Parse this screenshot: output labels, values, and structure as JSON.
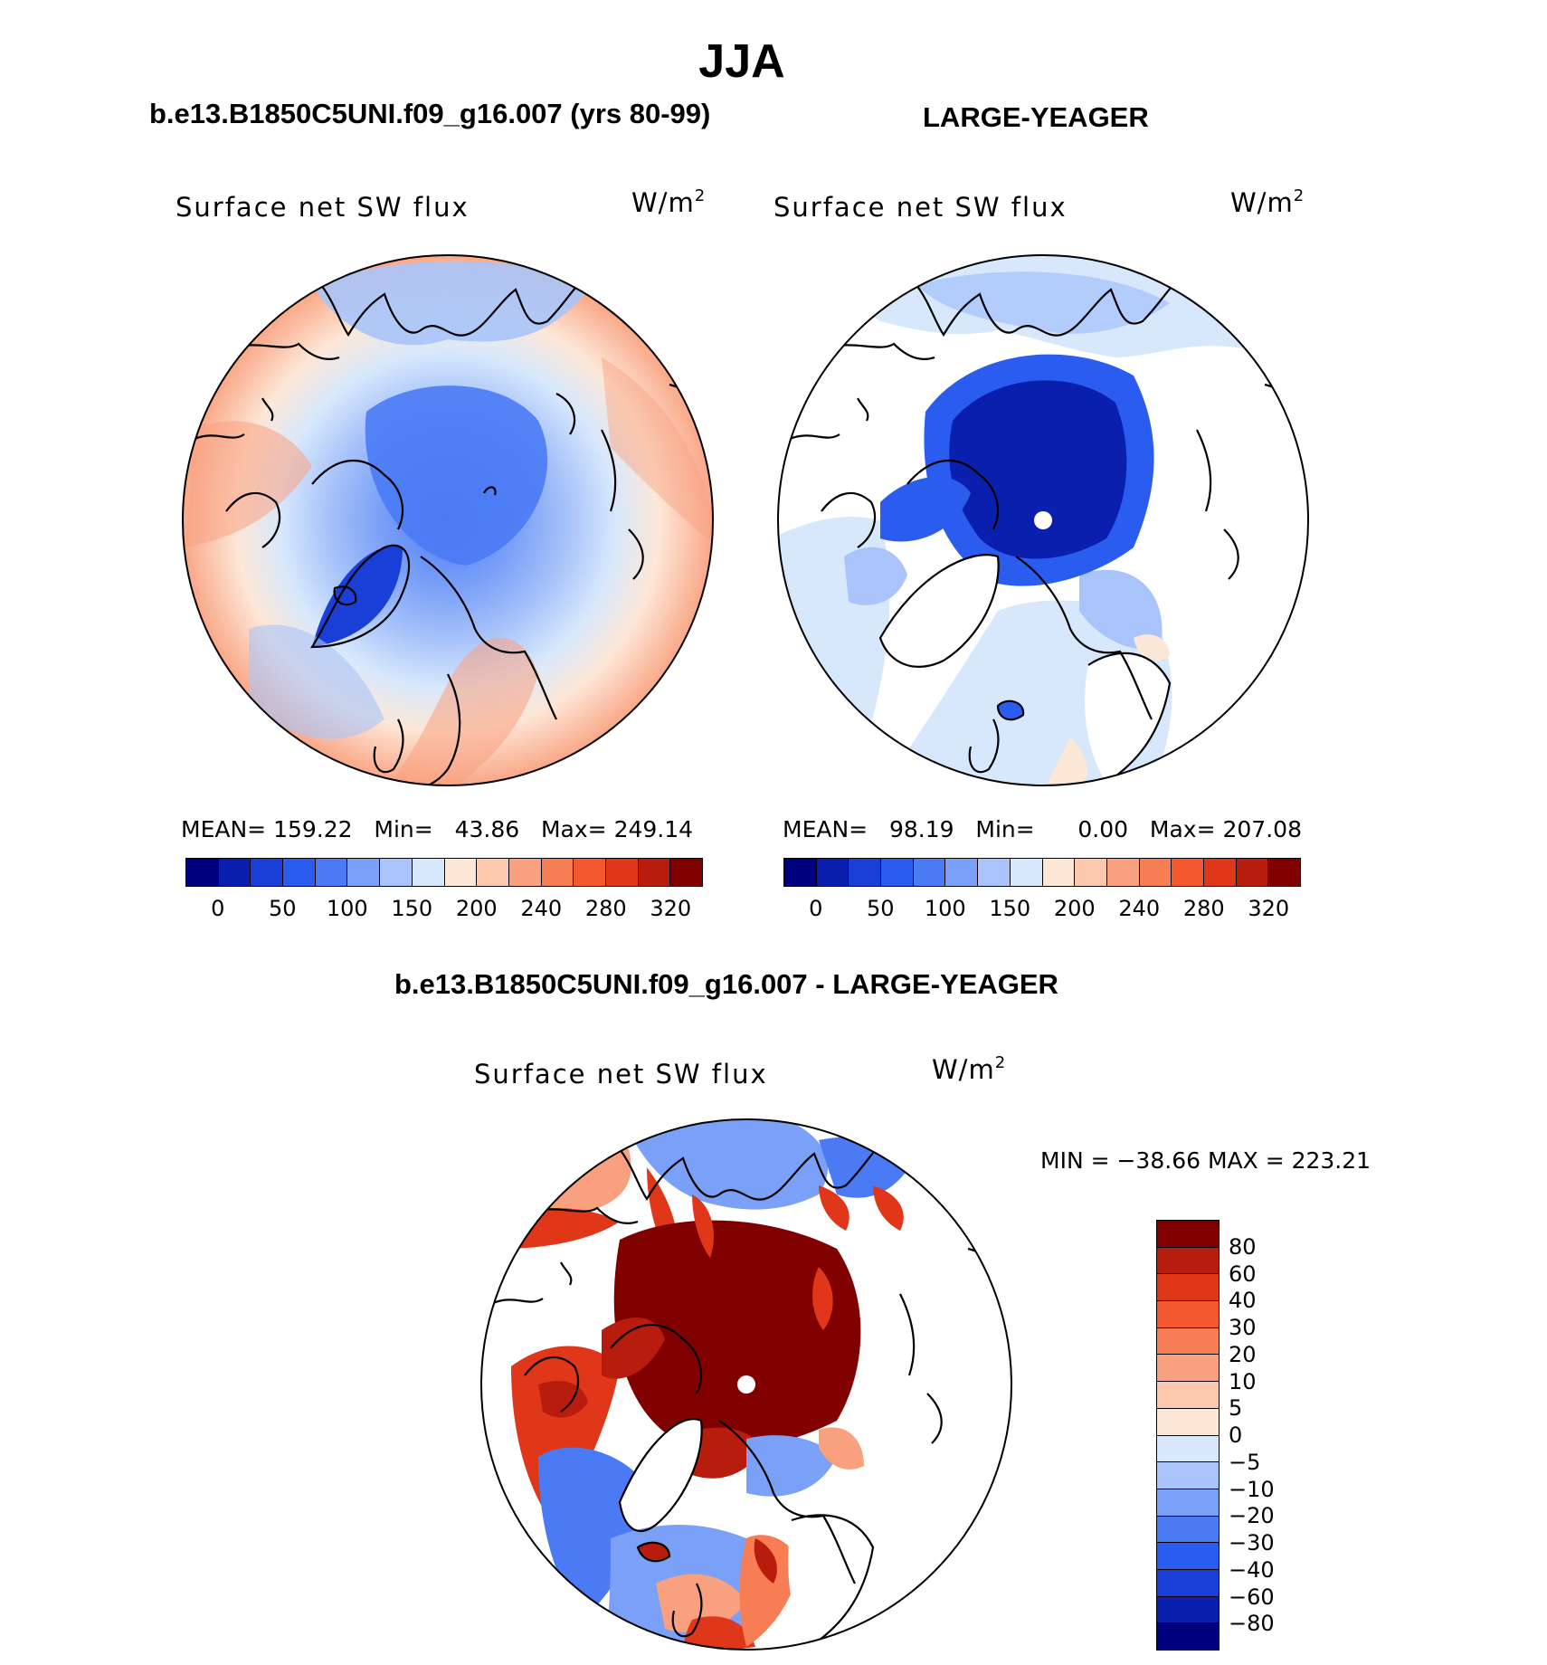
{
  "main_title": "JJA",
  "panels": [
    {
      "case_title": "b.e13.B1850C5UNI.f09_g16.007 (yrs 80-99)",
      "variable": "Surface net SW flux",
      "units": "W/m",
      "units_sup": "2",
      "stats": {
        "mean_label": "MEAN=",
        "mean": "159.22",
        "min_label": "Min=",
        "min": "43.86",
        "max_label": "Max=",
        "max": "249.14"
      }
    },
    {
      "case_title": "LARGE-YEAGER",
      "variable": "Surface net SW flux",
      "units": "W/m",
      "units_sup": "2",
      "stats": {
        "mean_label": "MEAN=",
        "mean": "98.19",
        "min_label": "Min=",
        "min": "0.00",
        "max_label": "Max=",
        "max": "207.08"
      }
    }
  ],
  "diff_panel": {
    "case_title": "b.e13.B1850C5UNI.f09_g16.007 - LARGE-YEAGER",
    "variable": "Surface net SW flux",
    "units": "W/m",
    "units_sup": "2",
    "minmax": "MIN = −38.66 MAX = 223.21"
  },
  "abs_colorbar": {
    "colors": [
      "#00007f",
      "#0a1fad",
      "#1a3fd6",
      "#2b5cf0",
      "#4a7bf5",
      "#7aa0f7",
      "#a9c4fa",
      "#d8e8fc",
      "#fde7d7",
      "#fbc7ad",
      "#f9a07f",
      "#f77d55",
      "#f4582f",
      "#e0361a",
      "#b71c0d",
      "#800000"
    ],
    "tick_labels": [
      "0",
      "50",
      "100",
      "150",
      "200",
      "240",
      "280",
      "320"
    ]
  },
  "diff_colorbar": {
    "colors": [
      "#800000",
      "#b71c0d",
      "#e0361a",
      "#f4582f",
      "#f77d55",
      "#f9a07f",
      "#fbc7ad",
      "#fde7d7",
      "#d8e8fc",
      "#a9c4fa",
      "#7aa0f7",
      "#4a7bf5",
      "#2b5cf0",
      "#1a3fd6",
      "#0a1fad",
      "#00007f"
    ],
    "tick_labels": [
      "80",
      "60",
      "40",
      "30",
      "20",
      "10",
      "5",
      "0",
      "−5",
      "−10",
      "−20",
      "−30",
      "−40",
      "−60",
      "−80"
    ]
  }
}
